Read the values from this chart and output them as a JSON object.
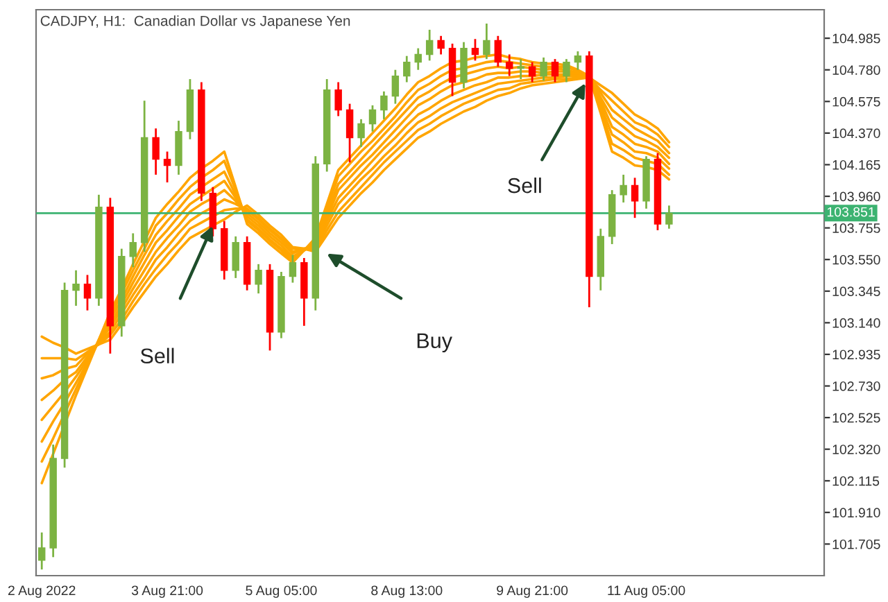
{
  "chart_data": {
    "type": "candlestick",
    "title": "CADJPY, H1:  Canadian Dollar vs Japanese Yen",
    "categories": [
      "2 Aug 2022",
      null,
      null,
      null,
      null,
      null,
      null,
      null,
      null,
      null,
      null,
      "3 Aug 21:00",
      null,
      null,
      null,
      null,
      null,
      null,
      null,
      null,
      null,
      "5 Aug 05:00",
      null,
      null,
      null,
      null,
      null,
      null,
      null,
      null,
      null,
      null,
      "8 Aug 13:00",
      null,
      null,
      null,
      null,
      null,
      null,
      null,
      null,
      null,
      null,
      "9 Aug 21:00",
      null,
      null,
      null,
      null,
      null,
      null,
      null,
      null,
      null,
      "11 Aug 05:00",
      null,
      null
    ],
    "ohlc": [
      [
        101.6,
        101.78,
        101.54,
        101.68
      ],
      [
        101.68,
        102.35,
        101.62,
        102.26
      ],
      [
        102.26,
        103.4,
        102.2,
        103.35
      ],
      [
        103.35,
        103.48,
        103.25,
        103.39
      ],
      [
        103.39,
        103.45,
        103.22,
        103.3
      ],
      [
        103.3,
        103.97,
        103.25,
        103.89
      ],
      [
        103.89,
        103.95,
        102.94,
        103.12
      ],
      [
        103.12,
        103.62,
        103.05,
        103.57
      ],
      [
        103.57,
        103.72,
        103.5,
        103.66
      ],
      [
        103.66,
        104.58,
        103.6,
        104.34
      ],
      [
        104.34,
        104.4,
        104.1,
        104.2
      ],
      [
        104.2,
        104.25,
        104.05,
        104.16
      ],
      [
        104.16,
        104.45,
        104.1,
        104.38
      ],
      [
        104.38,
        104.72,
        104.33,
        104.65
      ],
      [
        104.65,
        104.7,
        103.93,
        103.98
      ],
      [
        103.98,
        104.02,
        103.7,
        103.75
      ],
      [
        103.75,
        103.8,
        103.42,
        103.48
      ],
      [
        103.48,
        103.7,
        103.43,
        103.66
      ],
      [
        103.66,
        103.7,
        103.35,
        103.39
      ],
      [
        103.39,
        103.52,
        103.33,
        103.48
      ],
      [
        103.48,
        103.52,
        102.96,
        103.08
      ],
      [
        103.08,
        103.47,
        103.04,
        103.44
      ],
      [
        103.44,
        103.58,
        103.4,
        103.53
      ],
      [
        103.53,
        103.56,
        103.12,
        103.3
      ],
      [
        103.3,
        104.22,
        103.22,
        104.17
      ],
      [
        104.17,
        104.72,
        104.12,
        104.65
      ],
      [
        104.65,
        104.7,
        104.48,
        104.52
      ],
      [
        104.52,
        104.56,
        104.18,
        104.34
      ],
      [
        104.34,
        104.46,
        104.28,
        104.43
      ],
      [
        104.43,
        104.55,
        104.38,
        104.52
      ],
      [
        104.52,
        104.64,
        104.46,
        104.61
      ],
      [
        104.61,
        104.78,
        104.56,
        104.74
      ],
      [
        104.74,
        104.87,
        104.7,
        104.83
      ],
      [
        104.83,
        104.92,
        104.78,
        104.88
      ],
      [
        104.88,
        105.04,
        104.84,
        104.97
      ],
      [
        104.97,
        105.0,
        104.88,
        104.92
      ],
      [
        104.92,
        104.95,
        104.61,
        104.7
      ],
      [
        104.7,
        104.96,
        104.66,
        104.92
      ],
      [
        104.92,
        104.98,
        104.84,
        104.88
      ],
      [
        104.88,
        105.08,
        104.85,
        104.97
      ],
      [
        104.97,
        105.0,
        104.8,
        104.83
      ],
      [
        104.83,
        104.88,
        104.74,
        104.79
      ],
      [
        104.79,
        104.85,
        104.72,
        104.8
      ],
      [
        104.8,
        104.83,
        104.7,
        104.74
      ],
      [
        104.74,
        104.86,
        104.71,
        104.83
      ],
      [
        104.83,
        104.85,
        104.7,
        104.74
      ],
      [
        104.74,
        104.85,
        104.7,
        104.83
      ],
      [
        104.83,
        104.9,
        104.78,
        104.87
      ],
      [
        104.87,
        104.9,
        103.24,
        103.44
      ],
      [
        103.44,
        103.75,
        103.35,
        103.7
      ],
      [
        103.7,
        104.0,
        103.65,
        103.97
      ],
      [
        103.97,
        104.1,
        103.92,
        104.03
      ],
      [
        104.03,
        104.08,
        103.82,
        103.93
      ],
      [
        103.93,
        104.22,
        103.88,
        104.2
      ],
      [
        104.2,
        104.24,
        103.74,
        103.78
      ],
      [
        103.78,
        103.9,
        103.75,
        103.85
      ]
    ],
    "colors": [
      "#7cb342",
      "#7cb342",
      "#7cb342",
      "#7cb342",
      "#ff0000",
      "#7cb342",
      "#ff0000",
      "#7cb342",
      "#7cb342",
      "#7cb342",
      "#ff0000",
      "#ff0000",
      "#7cb342",
      "#7cb342",
      "#ff0000",
      "#ff0000",
      "#ff0000",
      "#7cb342",
      "#ff0000",
      "#7cb342",
      "#ff0000",
      "#7cb342",
      "#7cb342",
      "#ff0000",
      "#7cb342",
      "#7cb342",
      "#ff0000",
      "#ff0000",
      "#7cb342",
      "#7cb342",
      "#7cb342",
      "#7cb342",
      "#7cb342",
      "#7cb342",
      "#7cb342",
      "#ff0000",
      "#ff0000",
      "#7cb342",
      "#ff0000",
      "#7cb342",
      "#ff0000",
      "#ff0000",
      "#7cb342",
      "#ff0000",
      "#7cb342",
      "#ff0000",
      "#7cb342",
      "#7cb342",
      "#ff0000",
      "#7cb342",
      "#7cb342",
      "#7cb342",
      "#ff0000",
      "#7cb342",
      "#ff0000",
      "#7cb342"
    ],
    "series": [
      {
        "type": "line",
        "color": "#ffa500",
        "values": [
          102.1,
          102.29,
          102.48,
          102.67,
          102.85,
          103.03,
          103.21,
          103.36,
          103.52,
          103.67,
          103.82,
          103.91,
          103.99,
          104.08,
          104.14,
          104.19,
          104.25,
          104.02,
          103.78,
          103.72,
          103.65,
          103.59,
          103.53,
          103.61,
          103.69,
          103.91,
          104.13,
          104.21,
          104.29,
          104.37,
          104.45,
          104.53,
          104.62,
          104.7,
          104.74,
          104.79,
          104.83,
          104.84,
          104.86,
          104.87,
          104.88,
          104.86,
          104.85,
          104.83,
          104.82,
          104.82,
          104.81,
          104.78,
          104.74,
          104.5,
          104.25,
          104.21,
          104.16,
          104.15,
          104.13,
          104.07
        ]
      },
      {
        "type": "line",
        "color": "#ffa500",
        "values": [
          102.24,
          102.39,
          102.55,
          102.71,
          102.87,
          103.03,
          103.18,
          103.33,
          103.48,
          103.62,
          103.77,
          103.85,
          103.94,
          104.02,
          104.08,
          104.13,
          104.19,
          104.0,
          103.8,
          103.74,
          103.67,
          103.61,
          103.54,
          103.61,
          103.68,
          103.88,
          104.09,
          104.17,
          104.25,
          104.32,
          104.4,
          104.48,
          104.57,
          104.65,
          104.69,
          104.74,
          104.78,
          104.79,
          104.81,
          104.83,
          104.84,
          104.83,
          104.82,
          104.81,
          104.8,
          104.8,
          104.8,
          104.77,
          104.74,
          104.53,
          104.3,
          104.26,
          104.21,
          104.19,
          104.17,
          104.1
        ]
      },
      {
        "type": "line",
        "color": "#ffa500",
        "values": [
          102.37,
          102.5,
          102.62,
          102.75,
          102.88,
          103.02,
          103.16,
          103.29,
          103.44,
          103.58,
          103.71,
          103.8,
          103.88,
          103.97,
          104.02,
          104.07,
          104.12,
          103.97,
          103.81,
          103.75,
          103.68,
          103.62,
          103.56,
          103.61,
          103.66,
          103.85,
          104.04,
          104.12,
          104.2,
          104.28,
          104.36,
          104.44,
          104.52,
          104.6,
          104.64,
          104.69,
          104.73,
          104.75,
          104.77,
          104.79,
          104.8,
          104.79,
          104.8,
          104.79,
          104.78,
          104.79,
          104.78,
          104.76,
          104.74,
          104.55,
          104.36,
          104.31,
          104.25,
          104.24,
          104.21,
          104.14
        ]
      },
      {
        "type": "line",
        "color": "#ffa500",
        "values": [
          102.51,
          102.6,
          102.69,
          102.79,
          102.9,
          103.02,
          103.13,
          103.26,
          103.4,
          103.53,
          103.66,
          103.74,
          103.83,
          103.91,
          103.96,
          104.01,
          104.06,
          103.95,
          103.83,
          103.77,
          103.7,
          103.64,
          103.57,
          103.61,
          103.65,
          103.82,
          104.0,
          104.08,
          104.16,
          104.23,
          104.31,
          104.39,
          104.47,
          104.55,
          104.59,
          104.64,
          104.68,
          104.7,
          104.72,
          104.75,
          104.76,
          104.76,
          104.77,
          104.77,
          104.76,
          104.77,
          104.77,
          104.75,
          104.74,
          104.58,
          104.41,
          104.36,
          104.3,
          104.28,
          104.25,
          104.17
        ]
      },
      {
        "type": "line",
        "color": "#ffa500",
        "values": [
          102.64,
          102.7,
          102.77,
          102.82,
          102.92,
          103.01,
          103.11,
          103.23,
          103.36,
          103.48,
          103.6,
          103.69,
          103.77,
          103.86,
          103.91,
          103.95,
          104.0,
          103.93,
          103.85,
          103.79,
          103.72,
          103.66,
          103.59,
          103.62,
          103.64,
          103.8,
          103.95,
          104.03,
          104.11,
          104.19,
          104.27,
          104.34,
          104.42,
          104.49,
          104.53,
          104.58,
          104.62,
          104.65,
          104.68,
          104.7,
          104.73,
          104.73,
          104.74,
          104.74,
          104.75,
          104.75,
          104.75,
          104.75,
          104.73,
          104.6,
          104.47,
          104.41,
          104.35,
          104.32,
          104.28,
          104.21
        ]
      },
      {
        "type": "line",
        "color": "#ffa500",
        "values": [
          102.78,
          102.8,
          102.84,
          102.86,
          102.94,
          103.01,
          103.08,
          103.2,
          103.32,
          103.43,
          103.55,
          103.63,
          103.72,
          103.8,
          103.85,
          103.89,
          103.94,
          103.91,
          103.87,
          103.81,
          103.74,
          103.68,
          103.6,
          103.62,
          103.63,
          103.77,
          103.91,
          103.99,
          104.07,
          104.14,
          104.22,
          104.29,
          104.37,
          104.44,
          104.48,
          104.53,
          104.57,
          104.6,
          104.63,
          104.66,
          104.69,
          104.7,
          104.71,
          104.72,
          104.73,
          104.73,
          104.74,
          104.74,
          104.73,
          104.63,
          104.52,
          104.46,
          104.4,
          104.36,
          104.32,
          104.24
        ]
      },
      {
        "type": "line",
        "color": "#ffa500",
        "values": [
          102.91,
          102.91,
          102.91,
          102.9,
          102.95,
          103.0,
          103.06,
          103.16,
          103.28,
          103.39,
          103.49,
          103.58,
          103.66,
          103.75,
          103.79,
          103.83,
          103.87,
          103.88,
          103.88,
          103.82,
          103.75,
          103.69,
          103.62,
          103.62,
          103.61,
          103.74,
          103.86,
          103.94,
          104.02,
          104.1,
          104.18,
          104.25,
          104.32,
          104.39,
          104.43,
          104.48,
          104.52,
          104.56,
          104.59,
          104.62,
          104.65,
          104.66,
          104.69,
          104.7,
          104.71,
          104.72,
          104.72,
          104.73,
          104.73,
          104.65,
          104.58,
          104.51,
          104.44,
          104.41,
          104.36,
          104.28
        ]
      },
      {
        "type": "line",
        "color": "#ffa500",
        "values": [
          103.05,
          103.01,
          102.98,
          102.94,
          102.97,
          103.0,
          103.03,
          103.13,
          103.24,
          103.34,
          103.44,
          103.52,
          103.61,
          103.69,
          103.73,
          103.77,
          103.81,
          103.86,
          103.9,
          103.84,
          103.77,
          103.71,
          103.63,
          103.62,
          103.6,
          103.71,
          103.82,
          103.9,
          103.98,
          104.05,
          104.13,
          104.2,
          104.27,
          104.34,
          104.38,
          104.43,
          104.47,
          104.51,
          104.54,
          104.58,
          104.61,
          104.63,
          104.66,
          104.68,
          104.69,
          104.7,
          104.71,
          104.72,
          104.73,
          104.68,
          104.63,
          104.56,
          104.49,
          104.45,
          104.4,
          104.31
        ]
      }
    ],
    "ylim": [
      101.5,
      105.17
    ],
    "yticks": [
      {
        "value": 101.705,
        "label": "101.705"
      },
      {
        "value": 101.91,
        "label": "101.910"
      },
      {
        "value": 102.115,
        "label": "102.115"
      },
      {
        "value": 102.32,
        "label": "102.320"
      },
      {
        "value": 102.525,
        "label": "102.525"
      },
      {
        "value": 102.73,
        "label": "102.730"
      },
      {
        "value": 102.935,
        "label": "102.935"
      },
      {
        "value": 103.14,
        "label": "103.140"
      },
      {
        "value": 103.345,
        "label": "103.345"
      },
      {
        "value": 103.55,
        "label": "103.550"
      },
      {
        "value": 103.755,
        "label": "103.755"
      },
      {
        "value": 103.96,
        "label": "103.960"
      },
      {
        "value": 104.165,
        "label": "104.165"
      },
      {
        "value": 104.37,
        "label": "104.370"
      },
      {
        "value": 104.575,
        "label": "104.575"
      },
      {
        "value": 104.78,
        "label": "104.780"
      },
      {
        "value": 104.985,
        "label": "104.985"
      }
    ],
    "ref_lines": [
      {
        "axis": "y",
        "value": 103.851,
        "label": "103.851",
        "color": "#3cb371"
      }
    ],
    "annotations": [
      "Sell",
      "Buy",
      "Sell"
    ],
    "grid": false,
    "legend": false,
    "marker": "none",
    "line_style": "solid"
  }
}
